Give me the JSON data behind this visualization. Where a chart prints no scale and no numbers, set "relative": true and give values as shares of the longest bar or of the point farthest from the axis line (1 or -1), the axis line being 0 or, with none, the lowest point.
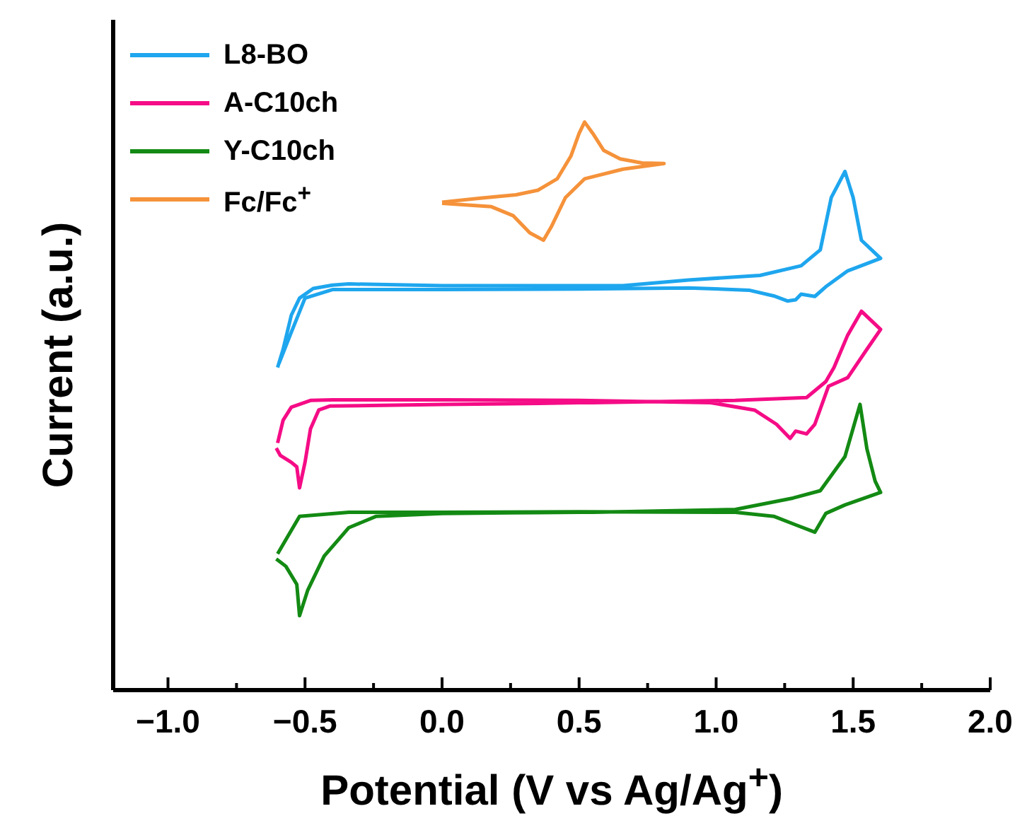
{
  "chart_data": {
    "type": "line",
    "relative": true,
    "xlabel": "Potential (V vs Ag/Ag$^{+}$)",
    "ylabel": "Current (a.u.)",
    "xlim": [
      -1.2,
      2.0
    ],
    "xticks": [
      {
        "value": -1.0,
        "label": "−1.0"
      },
      {
        "value": -0.75,
        "label": null
      },
      {
        "value": -0.5,
        "label": "−0.5"
      },
      {
        "value": -0.25,
        "label": null
      },
      {
        "value": 0,
        "label": "0.0"
      },
      {
        "value": 0.25,
        "label": null
      },
      {
        "value": 0.5,
        "label": "0.5"
      },
      {
        "value": 0.75,
        "label": null
      },
      {
        "value": 1.0,
        "label": "1.0"
      },
      {
        "value": 1.25,
        "label": null
      },
      {
        "value": 1.5,
        "label": "1.5"
      },
      {
        "value": 1.75,
        "label": null
      },
      {
        "value": 2.0,
        "label": "2.0"
      }
    ],
    "legend": "top left",
    "grid": false,
    "marker": "none",
    "line_style": "solid",
    "series": [
      {
        "name": "L8-BO",
        "color": "#1ea6ee",
        "x": [
          -0.6,
          -0.58,
          -0.55,
          -0.52,
          -0.47,
          -0.4,
          -0.34,
          0,
          0.25,
          0.5,
          0.66,
          0.9,
          1.16,
          1.31,
          1.38,
          1.42,
          1.47,
          1.5,
          1.53,
          1.6,
          1.48,
          1.4,
          1.36,
          1.31,
          1.29,
          1.26,
          1.21,
          1.12,
          0.9,
          0.5,
          0,
          -0.4,
          -0.5,
          -0.55,
          -0.595
        ],
        "values": [
          0.568,
          0.6,
          0.66,
          0.69,
          0.707,
          0.713,
          0.715,
          0.712,
          0.712,
          0.712,
          0.712,
          0.722,
          0.73,
          0.747,
          0.775,
          0.867,
          0.913,
          0.867,
          0.792,
          0.76,
          0.738,
          0.71,
          0.693,
          0.697,
          0.687,
          0.685,
          0.694,
          0.704,
          0.708,
          0.706,
          0.705,
          0.705,
          0.69,
          0.63,
          0.575
        ]
      },
      {
        "name": "A-C10ch",
        "color": "#f50c86",
        "x": [
          -0.605,
          -0.59,
          -0.55,
          -0.53,
          -0.52,
          -0.5,
          -0.48,
          -0.45,
          -0.41,
          0,
          0.25,
          0.5,
          0.55,
          1.07,
          1.33,
          1.4,
          1.43,
          1.48,
          1.53,
          1.6,
          1.55,
          1.48,
          1.41,
          1.36,
          1.33,
          1.29,
          1.27,
          1.22,
          1.14,
          0.98,
          0.5,
          0,
          -0.4,
          -0.48,
          -0.55,
          -0.58,
          -0.6
        ],
        "values": [
          0.426,
          0.413,
          0.401,
          0.393,
          0.356,
          0.401,
          0.46,
          0.493,
          0.5,
          0.503,
          0.504,
          0.506,
          0.506,
          0.51,
          0.515,
          0.543,
          0.568,
          0.625,
          0.667,
          0.635,
          0.6,
          0.55,
          0.535,
          0.468,
          0.451,
          0.456,
          0.443,
          0.468,
          0.493,
          0.506,
          0.51,
          0.511,
          0.511,
          0.51,
          0.498,
          0.475,
          0.435
        ]
      },
      {
        "name": "Y-C10ch",
        "color": "#138a13",
        "x": [
          -0.605,
          -0.57,
          -0.53,
          -0.52,
          -0.49,
          -0.43,
          -0.34,
          -0.24,
          0,
          0.25,
          0.5,
          0.55,
          1.07,
          1.28,
          1.38,
          1.47,
          1.525,
          1.55,
          1.58,
          1.6,
          1.47,
          1.4,
          1.36,
          1.29,
          1.21,
          1.07,
          0.5,
          0,
          -0.34,
          -0.52,
          -0.6
        ],
        "values": [
          0.231,
          0.218,
          0.186,
          0.131,
          0.176,
          0.236,
          0.286,
          0.306,
          0.311,
          0.312,
          0.313,
          0.313,
          0.318,
          0.338,
          0.351,
          0.411,
          0.503,
          0.425,
          0.368,
          0.348,
          0.326,
          0.311,
          0.278,
          0.291,
          0.306,
          0.313,
          0.314,
          0.313,
          0.313,
          0.306,
          0.24
        ]
      },
      {
        "name": "Fc/Fc$^{+}$",
        "color": "#f5923a",
        "x": [
          0,
          0.14,
          0.27,
          0.35,
          0.42,
          0.47,
          0.5,
          0.52,
          0.55,
          0.59,
          0.65,
          0.73,
          0.81,
          0.66,
          0.52,
          0.45,
          0.4,
          0.37,
          0.32,
          0.26,
          0.18,
          0
        ],
        "values": [
          0.859,
          0.866,
          0.872,
          0.88,
          0.9,
          0.94,
          0.98,
          1.0,
          0.98,
          0.95,
          0.935,
          0.928,
          0.927,
          0.917,
          0.9,
          0.867,
          0.817,
          0.792,
          0.805,
          0.835,
          0.851,
          0.857
        ]
      }
    ]
  }
}
